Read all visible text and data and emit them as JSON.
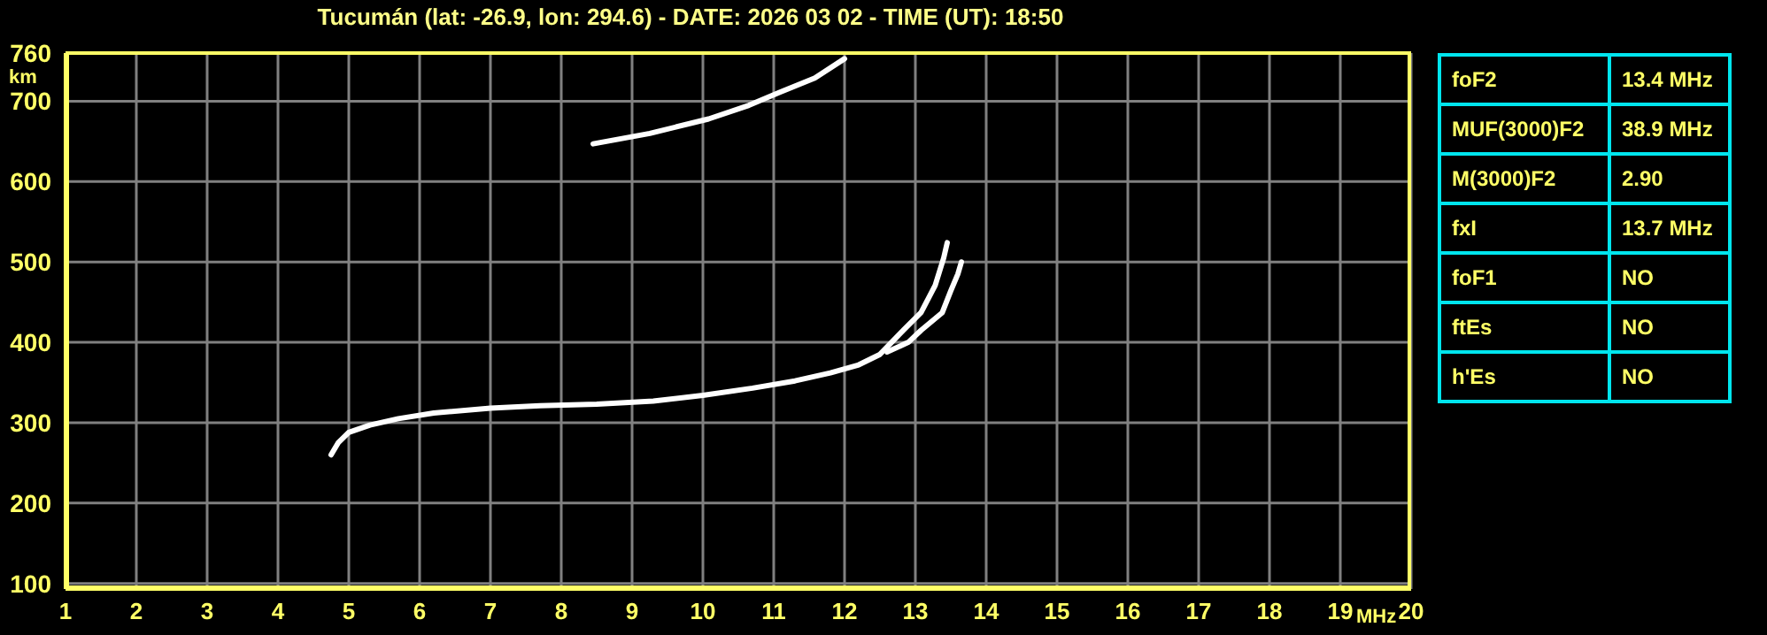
{
  "chart_data": [
    {
      "type": "line",
      "title": "Tucumán (lat: -26.9, lon: 294.6) - DATE: 2026 03 02 - TIME (UT): 18:50",
      "xlabel": "MHz",
      "ylabel": "km",
      "xlim": [
        1,
        20
      ],
      "xticks": [
        1,
        2,
        3,
        4,
        5,
        6,
        7,
        8,
        9,
        10,
        11,
        12,
        13,
        14,
        15,
        16,
        17,
        18,
        19,
        20
      ],
      "ylim": [
        93,
        760
      ],
      "yticks": [
        100,
        200,
        300,
        400,
        500,
        600,
        700,
        760
      ],
      "grid": true,
      "marker": "none",
      "line_style": "solid",
      "series": [
        {
          "color": "#ffffff",
          "x": [
            4.75,
            4.85,
            5.0,
            5.3,
            5.7,
            6.2,
            7.0,
            7.7,
            8.5,
            9.3,
            10.0,
            10.7,
            11.3,
            11.8,
            12.2,
            12.5,
            12.83,
            13.08,
            13.28,
            13.4,
            13.45
          ],
          "values": [
            260,
            275,
            288,
            297,
            305,
            312,
            318,
            321,
            323,
            327,
            334,
            343,
            352,
            362,
            372,
            385,
            415,
            437,
            471,
            505,
            524
          ]
        },
        {
          "color": "#ffffff",
          "x": [
            12.6,
            12.9,
            13.08,
            13.38,
            13.5,
            13.6,
            13.65
          ],
          "values": [
            388,
            400,
            415,
            437,
            464,
            485,
            500
          ]
        },
        {
          "color": "#ffffff",
          "x": [
            8.45,
            9.25,
            10.08,
            10.65,
            11.08,
            11.58,
            12.0
          ],
          "values": [
            647,
            660,
            678,
            695,
            711,
            729,
            753
          ]
        }
      ]
    },
    {
      "type": "other",
      "annotations": [
        "foF2",
        "13.4 MHz",
        "MUF(3000)F2",
        "38.9 MHz",
        "M(3000)F2",
        "2.90",
        "fxI",
        "13.7 MHz",
        "foF1",
        "NO",
        "ftEs",
        "NO",
        "h'Es",
        "NO"
      ]
    }
  ]
}
